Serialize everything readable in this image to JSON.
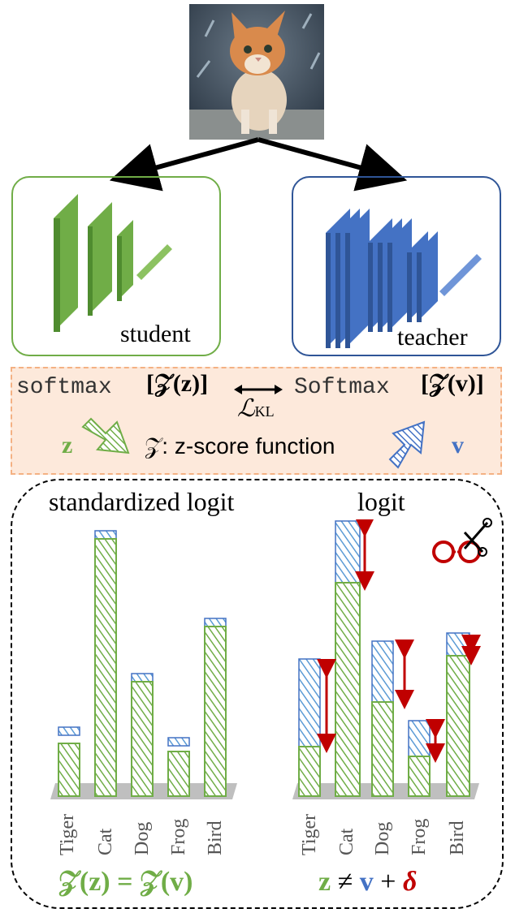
{
  "labels": {
    "student": "student",
    "teacher": "teacher",
    "softmax_left": "softmax",
    "softmax_right": "Softmax",
    "z_arg_left": "[𝒵(z)]",
    "z_arg_right": "[𝒵(v)]",
    "kl_main": "ℒ",
    "kl_sub": "KL",
    "z_left": "z",
    "z_right": "v",
    "zscore_label": "𝒵: z-score function",
    "panel_left_title": "standardized logit",
    "panel_right_title": "logit",
    "eq_left": "𝒵(z) = 𝒵(v)",
    "eq_right_z": "z",
    "eq_right_neq": "≠",
    "eq_right_v": "v",
    "eq_right_plus": "+",
    "eq_right_delta": "δ"
  },
  "categories": [
    "Tiger",
    "Cat",
    "Dog",
    "Frog",
    "Bird"
  ],
  "colors": {
    "student_green": "#70ad47",
    "teacher_blue": "#4472c4",
    "delta_red": "#c00000",
    "kl_box_fill": "#fde9db",
    "kl_box_border": "#f4b183"
  },
  "icons": [
    "cat-photo",
    "handcuffs-scissors-icon",
    "red-double-arrow-icon"
  ]
}
